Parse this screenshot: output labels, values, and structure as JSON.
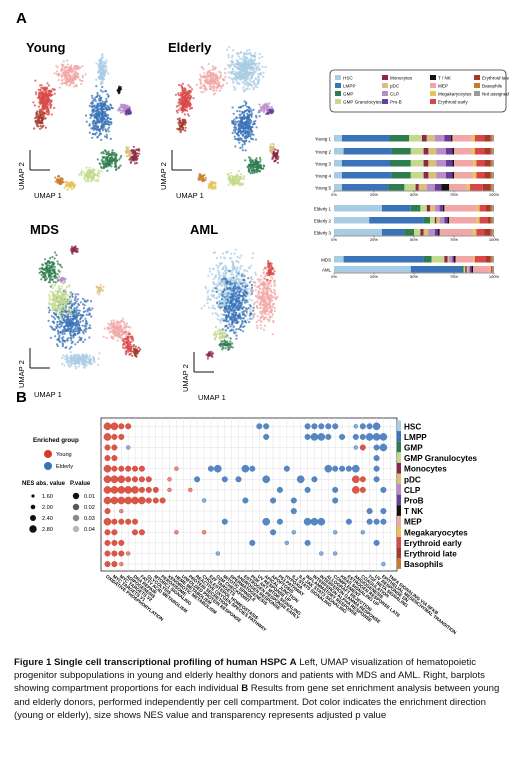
{
  "figure": {
    "panel_a_label": "A",
    "panel_b_label": "B"
  },
  "umap_panels": [
    {
      "title": "Young",
      "xlabel": "UMAP 1",
      "ylabel": "UMAP 2"
    },
    {
      "title": "Elderly",
      "xlabel": "UMAP 1",
      "ylabel": "UMAP 2"
    },
    {
      "title": "MDS",
      "xlabel": "UMAP 1",
      "ylabel": "UMAP 2"
    },
    {
      "title": "AML",
      "xlabel": "UMAP 1",
      "ylabel": "UMAP 2"
    }
  ],
  "legend_a": [
    {
      "name": "HSC",
      "color": "#a8cce4"
    },
    {
      "name": "LMPP",
      "color": "#3a73b8"
    },
    {
      "name": "GMP",
      "color": "#2e7d4f"
    },
    {
      "name": "GMP Granulocytes",
      "color": "#c3d98b"
    },
    {
      "name": "Monocytes",
      "color": "#8c2846"
    },
    {
      "name": "pDC",
      "color": "#d9c07a"
    },
    {
      "name": "CLP",
      "color": "#b88bc9"
    },
    {
      "name": "Pro-B",
      "color": "#6a3d9a"
    },
    {
      "name": "T / NK",
      "color": "#111111"
    },
    {
      "name": "MEP",
      "color": "#f2a7a7"
    },
    {
      "name": "Megakaryocytes",
      "color": "#e8c25a"
    },
    {
      "name": "Erythroid early",
      "color": "#d94848"
    },
    {
      "name": "Erythroid late",
      "color": "#a63a2a"
    },
    {
      "name": "Basophils",
      "color": "#c97a2a"
    },
    {
      "name": "Not assigned",
      "color": "#9a9a9a"
    }
  ],
  "chart_data": [
    {
      "type": "bar",
      "orientation": "horizontal",
      "stacked": "percent",
      "categories": [
        "Young 1",
        "Young 2",
        "Young 3",
        "Young 4",
        "Young 5",
        "Elderly 1",
        "Elderly 2",
        "Elderly 3",
        "MDS",
        "AML"
      ],
      "xtick_labels": [
        "0%",
        "25%",
        "50%",
        "75%",
        "100%"
      ],
      "xlim": [
        0,
        100
      ],
      "series": [
        {
          "name": "HSC",
          "values": [
            5,
            6,
            5,
            5,
            5,
            30,
            22,
            30,
            6,
            48
          ]
        },
        {
          "name": "LMPP",
          "values": [
            30,
            30,
            30,
            31,
            29,
            18,
            34,
            14,
            50,
            32
          ]
        },
        {
          "name": "GMP",
          "values": [
            12,
            12,
            13,
            12,
            10,
            6,
            4,
            6,
            5,
            1
          ]
        },
        {
          "name": "GMP Granulocytes",
          "values": [
            8,
            8,
            8,
            8,
            7,
            4,
            3,
            4,
            8,
            1
          ]
        },
        {
          "name": "Monocytes",
          "values": [
            3,
            3,
            3,
            3,
            2,
            2,
            1,
            2,
            2,
            1
          ]
        },
        {
          "name": "pDC",
          "values": [
            5,
            5,
            5,
            5,
            5,
            3,
            2,
            3,
            1,
            1
          ]
        },
        {
          "name": "CLP",
          "values": [
            6,
            6,
            6,
            6,
            5,
            3,
            3,
            4,
            2,
            1
          ]
        },
        {
          "name": "Pro-B",
          "values": [
            4,
            4,
            4,
            4,
            4,
            2,
            2,
            2,
            1,
            1
          ]
        },
        {
          "name": "T / NK",
          "values": [
            1,
            1,
            1,
            1,
            5,
            1,
            1,
            1,
            1,
            1
          ]
        },
        {
          "name": "MEP",
          "values": [
            12,
            11,
            12,
            12,
            11,
            20,
            17,
            21,
            11,
            10
          ]
        },
        {
          "name": "Megakaryocytes",
          "values": [
            2,
            2,
            2,
            2,
            2,
            2,
            2,
            2,
            1,
            1
          ]
        },
        {
          "name": "Erythroid early",
          "values": [
            6,
            6,
            5,
            5,
            8,
            4,
            5,
            5,
            7,
            1
          ]
        },
        {
          "name": "Erythroid late",
          "values": [
            4,
            4,
            4,
            4,
            5,
            3,
            2,
            4,
            3,
            0
          ]
        },
        {
          "name": "Basophils",
          "values": [
            1,
            1,
            1,
            1,
            1,
            1,
            1,
            1,
            1,
            0
          ]
        },
        {
          "name": "Not assigned",
          "values": [
            1,
            1,
            1,
            1,
            1,
            1,
            1,
            1,
            1,
            1
          ]
        }
      ]
    },
    {
      "type": "scatter",
      "subtype": "dotplot",
      "legend_group_title": "Enriched group",
      "groups": [
        {
          "name": "Young",
          "color": "#d23b2a"
        },
        {
          "name": "Elderly",
          "color": "#3a73b8"
        }
      ],
      "size_legend_title": "NES abs. value",
      "size_legend_values": [
        "1.60",
        "2.00",
        "2.40",
        "2.80"
      ],
      "alpha_legend_title": "P.value",
      "alpha_legend_values": [
        "0.01",
        "0.02",
        "0.03",
        "0.04"
      ],
      "rows": [
        "HSC",
        "LMPP",
        "GMP",
        "GMP Granulocytes",
        "Monocytes",
        "pDC",
        "CLP",
        "ProB",
        "T NK",
        "MEP",
        "Megakaryocytes",
        "Erythroid early",
        "Erythroid late",
        "Basophils"
      ],
      "columns": [
        "OXIDATIVE PHOSPHORYLATION",
        "MYC TARGETS V1",
        "MYC TARGETS V2",
        "ADIPOGENESIS",
        "DNA REPAIR",
        "FATTY ACID METABOLISM",
        "GLYCOLYSIS",
        "MTORC1 SIGNALING",
        "PEROXISOME",
        "XENOBIOTIC METABOLISM",
        "HEME METABOLISM",
        "UNFOLDED PROTEIN RESPONSE",
        "PROTEIN SECRETION",
        "REACTIVE OXYGEN SPECIES PATHWAY",
        "CHOLESTEROL HOMEOSTASIS",
        "E2F TARGETS",
        "G2M CHECKPOINT",
        "MITOTIC SPINDLE",
        "SPERMATOGENESIS",
        "ANDROGEN RESPONSE",
        "ESTROGEN RESPONSE EARLY",
        "PI3K AKT MTOR SIGNALING",
        "UV RESPONSE UP",
        "APICAL JUNCTION",
        "APOPTOSIS",
        "P53 PATHWAY",
        "HYPOXIA",
        "IL2 STAT5 SIGNALING",
        "IL6 JAK STAT3 SIGNALING",
        "INFLAMMATORY RESPONSE",
        "INTERFERON ALPHA RESPONSE",
        "INTERFERON GAMMA RESPONSE",
        "ALLOGRAFT REJECTION",
        "COMPLEMENT",
        "KRAS SIGNALING UP",
        "ESTROGEN RESPONSE LATE",
        "ANGIOGENESIS",
        "COAGULATION",
        "TGF BETA SIGNALING",
        "UV RESPONSE DN",
        "EPITHELIAL MESENCHYMAL TRANSITION",
        "TNFA SIGNALING VIA NFKB"
      ],
      "points": [
        [
          0,
          0,
          "Y",
          3
        ],
        [
          0,
          1,
          "Y",
          3
        ],
        [
          0,
          2,
          "Y",
          2
        ],
        [
          0,
          3,
          "Y",
          2
        ],
        [
          0,
          22,
          "E",
          2
        ],
        [
          0,
          23,
          "E",
          2
        ],
        [
          0,
          29,
          "E",
          2
        ],
        [
          0,
          30,
          "E",
          2
        ],
        [
          0,
          31,
          "E",
          2
        ],
        [
          0,
          32,
          "E",
          2
        ],
        [
          0,
          33,
          "E",
          2
        ],
        [
          0,
          36,
          "E",
          1
        ],
        [
          0,
          37,
          "E",
          2
        ],
        [
          0,
          38,
          "E",
          2
        ],
        [
          0,
          39,
          "E",
          3
        ],
        [
          1,
          0,
          "Y",
          3
        ],
        [
          1,
          1,
          "Y",
          2
        ],
        [
          1,
          2,
          "Y",
          2
        ],
        [
          1,
          23,
          "E",
          2
        ],
        [
          1,
          29,
          "E",
          2
        ],
        [
          1,
          30,
          "E",
          3
        ],
        [
          1,
          31,
          "E",
          3
        ],
        [
          1,
          32,
          "E",
          2
        ],
        [
          1,
          34,
          "E",
          2
        ],
        [
          1,
          36,
          "E",
          2
        ],
        [
          1,
          37,
          "E",
          2
        ],
        [
          1,
          38,
          "E",
          3
        ],
        [
          1,
          39,
          "E",
          3
        ],
        [
          1,
          40,
          "E",
          3
        ],
        [
          2,
          0,
          "Y",
          2
        ],
        [
          2,
          1,
          "Y",
          2
        ],
        [
          2,
          3,
          "E",
          1
        ],
        [
          2,
          36,
          "E",
          1
        ],
        [
          2,
          37,
          "Y",
          2
        ],
        [
          2,
          39,
          "E",
          2
        ],
        [
          2,
          40,
          "E",
          3
        ],
        [
          3,
          0,
          "Y",
          2
        ],
        [
          3,
          1,
          "Y",
          2
        ],
        [
          3,
          39,
          "E",
          2
        ],
        [
          4,
          0,
          "Y",
          3
        ],
        [
          4,
          1,
          "Y",
          2
        ],
        [
          4,
          2,
          "Y",
          2
        ],
        [
          4,
          3,
          "Y",
          2
        ],
        [
          4,
          4,
          "Y",
          2
        ],
        [
          4,
          5,
          "Y",
          2
        ],
        [
          4,
          10,
          "Y",
          1
        ],
        [
          4,
          15,
          "E",
          2
        ],
        [
          4,
          16,
          "E",
          3
        ],
        [
          4,
          20,
          "E",
          3
        ],
        [
          4,
          21,
          "E",
          2
        ],
        [
          4,
          26,
          "E",
          2
        ],
        [
          4,
          32,
          "E",
          3
        ],
        [
          4,
          33,
          "E",
          2
        ],
        [
          4,
          34,
          "E",
          2
        ],
        [
          4,
          35,
          "E",
          2
        ],
        [
          4,
          36,
          "E",
          3
        ],
        [
          4,
          39,
          "E",
          2
        ],
        [
          5,
          0,
          "Y",
          3
        ],
        [
          5,
          1,
          "Y",
          3
        ],
        [
          5,
          2,
          "Y",
          3
        ],
        [
          5,
          3,
          "Y",
          2
        ],
        [
          5,
          4,
          "Y",
          2
        ],
        [
          5,
          5,
          "Y",
          2
        ],
        [
          5,
          6,
          "Y",
          2
        ],
        [
          5,
          9,
          "Y",
          1
        ],
        [
          5,
          13,
          "E",
          2
        ],
        [
          5,
          17,
          "E",
          2
        ],
        [
          5,
          19,
          "E",
          2
        ],
        [
          5,
          23,
          "E",
          3
        ],
        [
          5,
          28,
          "E",
          3
        ],
        [
          5,
          30,
          "E",
          2
        ],
        [
          5,
          36,
          "Y",
          3
        ],
        [
          5,
          37,
          "Y",
          2
        ],
        [
          5,
          39,
          "E",
          2
        ],
        [
          6,
          0,
          "Y",
          3
        ],
        [
          6,
          1,
          "Y",
          3
        ],
        [
          6,
          2,
          "Y",
          3
        ],
        [
          6,
          3,
          "Y",
          3
        ],
        [
          6,
          4,
          "Y",
          3
        ],
        [
          6,
          5,
          "Y",
          2
        ],
        [
          6,
          6,
          "Y",
          2
        ],
        [
          6,
          7,
          "Y",
          2
        ],
        [
          6,
          9,
          "Y",
          1
        ],
        [
          6,
          12,
          "Y",
          1
        ],
        [
          6,
          25,
          "E",
          2
        ],
        [
          6,
          29,
          "E",
          2
        ],
        [
          6,
          33,
          "E",
          2
        ],
        [
          6,
          36,
          "Y",
          3
        ],
        [
          6,
          37,
          "Y",
          2
        ],
        [
          6,
          40,
          "E",
          2
        ],
        [
          7,
          0,
          "Y",
          3
        ],
        [
          7,
          1,
          "Y",
          3
        ],
        [
          7,
          2,
          "Y",
          3
        ],
        [
          7,
          3,
          "Y",
          3
        ],
        [
          7,
          4,
          "Y",
          3
        ],
        [
          7,
          5,
          "Y",
          3
        ],
        [
          7,
          6,
          "Y",
          2
        ],
        [
          7,
          7,
          "Y",
          2
        ],
        [
          7,
          8,
          "Y",
          2
        ],
        [
          7,
          14,
          "E",
          1
        ],
        [
          7,
          20,
          "E",
          2
        ],
        [
          7,
          24,
          "E",
          2
        ],
        [
          7,
          27,
          "E",
          2
        ],
        [
          7,
          33,
          "E",
          2
        ],
        [
          8,
          0,
          "Y",
          2
        ],
        [
          8,
          2,
          "Y",
          1
        ],
        [
          8,
          27,
          "E",
          2
        ],
        [
          8,
          38,
          "E",
          2
        ],
        [
          8,
          40,
          "E",
          2
        ],
        [
          9,
          0,
          "Y",
          3
        ],
        [
          9,
          1,
          "Y",
          2
        ],
        [
          9,
          2,
          "Y",
          2
        ],
        [
          9,
          3,
          "Y",
          2
        ],
        [
          9,
          4,
          "Y",
          2
        ],
        [
          9,
          17,
          "E",
          2
        ],
        [
          9,
          23,
          "E",
          3
        ],
        [
          9,
          25,
          "E",
          2
        ],
        [
          9,
          29,
          "E",
          3
        ],
        [
          9,
          30,
          "E",
          3
        ],
        [
          9,
          31,
          "E",
          3
        ],
        [
          9,
          35,
          "E",
          2
        ],
        [
          9,
          38,
          "E",
          2
        ],
        [
          9,
          39,
          "E",
          2
        ],
        [
          9,
          40,
          "E",
          2
        ],
        [
          10,
          0,
          "Y",
          2
        ],
        [
          10,
          1,
          "Y",
          2
        ],
        [
          10,
          4,
          "Y",
          2
        ],
        [
          10,
          5,
          "Y",
          2
        ],
        [
          10,
          10,
          "Y",
          1
        ],
        [
          10,
          14,
          "Y",
          1
        ],
        [
          10,
          24,
          "E",
          2
        ],
        [
          10,
          27,
          "E",
          1
        ],
        [
          10,
          33,
          "E",
          1
        ],
        [
          10,
          37,
          "E",
          1
        ],
        [
          11,
          0,
          "Y",
          2
        ],
        [
          11,
          1,
          "Y",
          2
        ],
        [
          11,
          2,
          "Y",
          2
        ],
        [
          11,
          21,
          "E",
          2
        ],
        [
          11,
          26,
          "E",
          1
        ],
        [
          11,
          29,
          "E",
          2
        ],
        [
          11,
          39,
          "E",
          2
        ],
        [
          12,
          0,
          "Y",
          2
        ],
        [
          12,
          1,
          "Y",
          2
        ],
        [
          12,
          2,
          "Y",
          2
        ],
        [
          12,
          3,
          "Y",
          1
        ],
        [
          12,
          16,
          "E",
          1
        ],
        [
          12,
          31,
          "E",
          1
        ],
        [
          12,
          33,
          "E",
          1
        ],
        [
          13,
          0,
          "Y",
          2
        ],
        [
          13,
          1,
          "Y",
          2
        ],
        [
          13,
          2,
          "Y",
          1
        ],
        [
          13,
          40,
          "E",
          1
        ]
      ]
    }
  ],
  "caption": {
    "title": "Figure 1 Single cell transcriptional profiling of human HSPC",
    "part_a_letter": "A",
    "part_a_text": "Left, UMAP visualization of hematopoietic progenitor subpopulations in young and elderly healthy donors and patients with MDS and AML. Right, barplots showing compartment proportions for each individual",
    "part_b_letter": "B",
    "part_b_text": "Results from gene set enrichment analysis between young and elderly donors, performed independently per cell compartment. Dot color indicates the enrichment direction (young or elderly), size shows NES value and transparency represents adjusted p value"
  }
}
